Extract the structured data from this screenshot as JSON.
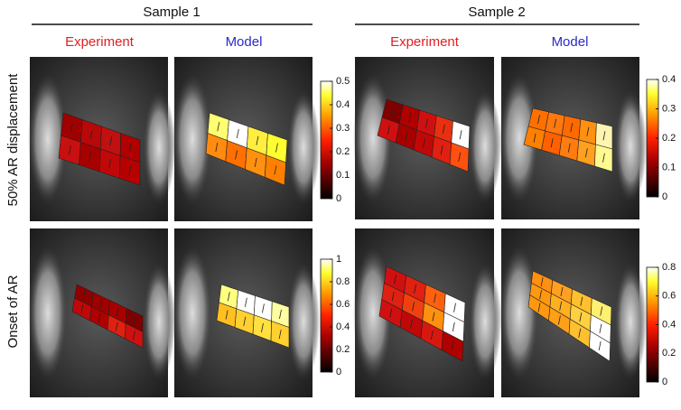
{
  "samples": [
    {
      "title": "Sample 1",
      "columns": [
        "Experiment",
        "Model"
      ]
    },
    {
      "title": "Sample 2",
      "columns": [
        "Experiment",
        "Model"
      ]
    }
  ],
  "rows": [
    "50% AR displacement",
    "Onset of AR"
  ],
  "colorbars": [
    {
      "ticks": [
        0,
        0.1,
        0.2,
        0.3,
        0.4,
        0.5
      ]
    },
    {
      "ticks": [
        0,
        0.1,
        0.2,
        0.3,
        0.4
      ]
    },
    {
      "ticks": [
        0,
        0.2,
        0.4,
        0.6,
        0.8,
        1
      ]
    },
    {
      "ticks": [
        0,
        0.2,
        0.4,
        0.6,
        0.8
      ]
    }
  ]
}
